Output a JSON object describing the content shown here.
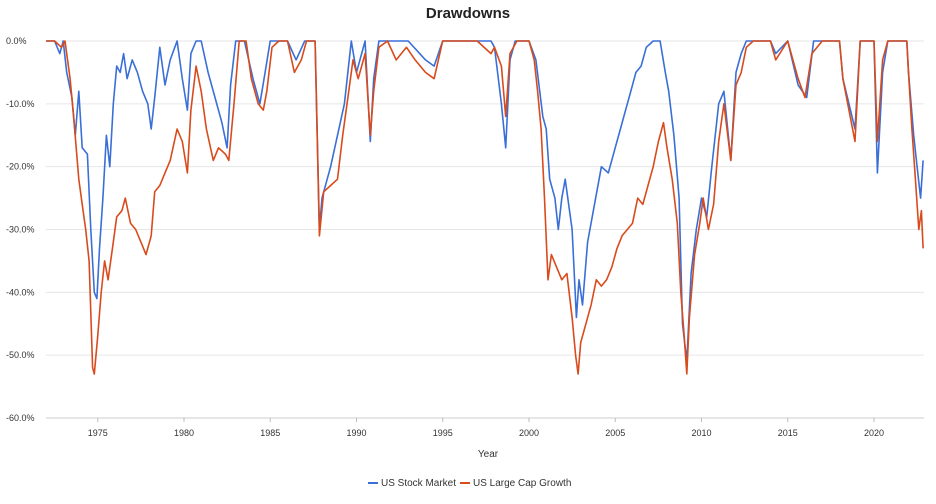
{
  "chart_data": {
    "type": "line",
    "title": "Drawdowns",
    "xlabel": "Year",
    "ylabel": "",
    "xlim": [
      1972.0,
      2022.9
    ],
    "ylim": [
      -60,
      0
    ],
    "x_ticks": [
      1975,
      1980,
      1985,
      1990,
      1995,
      2000,
      2005,
      2010,
      2015,
      2020
    ],
    "y_ticks": [
      0,
      -10,
      -20,
      -30,
      -40,
      -50,
      -60
    ],
    "y_tick_labels": [
      "0.0%",
      "-10.0%",
      "-20.0%",
      "-30.0%",
      "-40.0%",
      "-50.0%",
      "-60.0%"
    ],
    "grid": true,
    "legend_position": "bottom-center",
    "series": [
      {
        "name": "US Stock Market",
        "color": "#3a6fd8",
        "points": [
          [
            1972.0,
            0
          ],
          [
            1972.5,
            0
          ],
          [
            1972.8,
            -2
          ],
          [
            1973.0,
            0
          ],
          [
            1973.2,
            -5
          ],
          [
            1973.5,
            -9
          ],
          [
            1973.7,
            -15
          ],
          [
            1973.9,
            -8
          ],
          [
            1974.1,
            -17
          ],
          [
            1974.4,
            -18
          ],
          [
            1974.6,
            -30
          ],
          [
            1974.8,
            -40
          ],
          [
            1974.95,
            -41
          ],
          [
            1975.1,
            -33
          ],
          [
            1975.3,
            -25
          ],
          [
            1975.5,
            -15
          ],
          [
            1975.7,
            -20
          ],
          [
            1975.9,
            -10
          ],
          [
            1976.1,
            -4
          ],
          [
            1976.3,
            -5
          ],
          [
            1976.5,
            -2
          ],
          [
            1976.7,
            -6
          ],
          [
            1977.0,
            -3
          ],
          [
            1977.3,
            -5
          ],
          [
            1977.6,
            -8
          ],
          [
            1977.9,
            -10
          ],
          [
            1978.1,
            -14
          ],
          [
            1978.3,
            -9
          ],
          [
            1978.6,
            -1
          ],
          [
            1978.9,
            -7
          ],
          [
            1979.2,
            -3
          ],
          [
            1979.6,
            0
          ],
          [
            1979.9,
            -6
          ],
          [
            1980.2,
            -11
          ],
          [
            1980.4,
            -2
          ],
          [
            1980.7,
            0
          ],
          [
            1981.0,
            0
          ],
          [
            1981.4,
            -5
          ],
          [
            1981.8,
            -9
          ],
          [
            1982.2,
            -13
          ],
          [
            1982.5,
            -17
          ],
          [
            1982.7,
            -7
          ],
          [
            1983.0,
            0
          ],
          [
            1983.5,
            0
          ],
          [
            1984.0,
            -6
          ],
          [
            1984.4,
            -10
          ],
          [
            1984.7,
            -5
          ],
          [
            1985.0,
            0
          ],
          [
            1986.0,
            0
          ],
          [
            1986.5,
            -3
          ],
          [
            1987.0,
            0
          ],
          [
            1987.6,
            0
          ],
          [
            1987.85,
            -30
          ],
          [
            1988.0,
            -25
          ],
          [
            1988.5,
            -20
          ],
          [
            1988.9,
            -15
          ],
          [
            1989.3,
            -10
          ],
          [
            1989.7,
            0
          ],
          [
            1990.0,
            -5
          ],
          [
            1990.5,
            0
          ],
          [
            1990.8,
            -16
          ],
          [
            1991.0,
            -6
          ],
          [
            1991.3,
            0
          ],
          [
            1992.0,
            0
          ],
          [
            1993.0,
            0
          ],
          [
            1994.0,
            -3
          ],
          [
            1994.5,
            -4
          ],
          [
            1995.0,
            0
          ],
          [
            1997.0,
            0
          ],
          [
            1997.8,
            0
          ],
          [
            1998.0,
            -1
          ],
          [
            1998.4,
            -10
          ],
          [
            1998.65,
            -17
          ],
          [
            1998.9,
            -3
          ],
          [
            1999.2,
            0
          ],
          [
            2000.0,
            0
          ],
          [
            2000.4,
            -3
          ],
          [
            2000.8,
            -12
          ],
          [
            2001.0,
            -14
          ],
          [
            2001.2,
            -22
          ],
          [
            2001.5,
            -25
          ],
          [
            2001.7,
            -30
          ],
          [
            2001.9,
            -25
          ],
          [
            2002.1,
            -22
          ],
          [
            2002.5,
            -30
          ],
          [
            2002.75,
            -44
          ],
          [
            2002.9,
            -38
          ],
          [
            2003.1,
            -42
          ],
          [
            2003.4,
            -32
          ],
          [
            2003.8,
            -26
          ],
          [
            2004.2,
            -20
          ],
          [
            2004.6,
            -21
          ],
          [
            2005.0,
            -17
          ],
          [
            2005.3,
            -14
          ],
          [
            2005.6,
            -11
          ],
          [
            2005.9,
            -8
          ],
          [
            2006.2,
            -5
          ],
          [
            2006.5,
            -4
          ],
          [
            2006.8,
            -1
          ],
          [
            2007.2,
            0
          ],
          [
            2007.6,
            0
          ],
          [
            2007.9,
            -5
          ],
          [
            2008.1,
            -8
          ],
          [
            2008.4,
            -15
          ],
          [
            2008.7,
            -25
          ],
          [
            2008.9,
            -45
          ],
          [
            2009.15,
            -51
          ],
          [
            2009.4,
            -37
          ],
          [
            2009.7,
            -30
          ],
          [
            2010.0,
            -25
          ],
          [
            2010.3,
            -28
          ],
          [
            2010.6,
            -20
          ],
          [
            2011.0,
            -10
          ],
          [
            2011.3,
            -8
          ],
          [
            2011.7,
            -19
          ],
          [
            2012.0,
            -5
          ],
          [
            2012.3,
            -2
          ],
          [
            2012.6,
            0
          ],
          [
            2013.0,
            0
          ],
          [
            2014.0,
            0
          ],
          [
            2014.3,
            -2
          ],
          [
            2015.0,
            0
          ],
          [
            2015.6,
            -7
          ],
          [
            2016.1,
            -9
          ],
          [
            2016.5,
            0
          ],
          [
            2017.0,
            0
          ],
          [
            2018.0,
            0
          ],
          [
            2018.2,
            -6
          ],
          [
            2018.9,
            -14
          ],
          [
            2019.2,
            0
          ],
          [
            2020.0,
            0
          ],
          [
            2020.2,
            -21
          ],
          [
            2020.5,
            -5
          ],
          [
            2020.8,
            0
          ],
          [
            2021.5,
            0
          ],
          [
            2021.9,
            0
          ],
          [
            2022.0,
            -5
          ],
          [
            2022.3,
            -15
          ],
          [
            2022.5,
            -20
          ],
          [
            2022.7,
            -25
          ],
          [
            2022.85,
            -19
          ]
        ]
      },
      {
        "name": "US Large Cap Growth",
        "color": "#d94b1c",
        "points": [
          [
            1972.0,
            0
          ],
          [
            1972.5,
            0
          ],
          [
            1972.9,
            -1
          ],
          [
            1973.1,
            0
          ],
          [
            1973.4,
            -6
          ],
          [
            1973.6,
            -12
          ],
          [
            1973.9,
            -22
          ],
          [
            1974.1,
            -26
          ],
          [
            1974.3,
            -30
          ],
          [
            1974.5,
            -35
          ],
          [
            1974.7,
            -52
          ],
          [
            1974.8,
            -53
          ],
          [
            1975.0,
            -47
          ],
          [
            1975.2,
            -40
          ],
          [
            1975.4,
            -35
          ],
          [
            1975.6,
            -38
          ],
          [
            1975.9,
            -32
          ],
          [
            1976.1,
            -28
          ],
          [
            1976.4,
            -27
          ],
          [
            1976.6,
            -25
          ],
          [
            1976.9,
            -29
          ],
          [
            1977.2,
            -30
          ],
          [
            1977.5,
            -32
          ],
          [
            1977.8,
            -34
          ],
          [
            1978.1,
            -31
          ],
          [
            1978.3,
            -24
          ],
          [
            1978.6,
            -23
          ],
          [
            1978.9,
            -21
          ],
          [
            1979.2,
            -19
          ],
          [
            1979.6,
            -14
          ],
          [
            1979.9,
            -16
          ],
          [
            1980.2,
            -21
          ],
          [
            1980.4,
            -11
          ],
          [
            1980.7,
            -4
          ],
          [
            1981.0,
            -8
          ],
          [
            1981.3,
            -14
          ],
          [
            1981.7,
            -19
          ],
          [
            1982.0,
            -17
          ],
          [
            1982.4,
            -18
          ],
          [
            1982.6,
            -19
          ],
          [
            1982.9,
            -10
          ],
          [
            1983.2,
            0
          ],
          [
            1983.6,
            0
          ],
          [
            1983.9,
            -6
          ],
          [
            1984.3,
            -10
          ],
          [
            1984.6,
            -11
          ],
          [
            1984.8,
            -8
          ],
          [
            1985.1,
            -1
          ],
          [
            1985.5,
            0
          ],
          [
            1986.0,
            0
          ],
          [
            1986.4,
            -5
          ],
          [
            1986.8,
            -3
          ],
          [
            1987.1,
            0
          ],
          [
            1987.6,
            0
          ],
          [
            1987.85,
            -31
          ],
          [
            1988.1,
            -24
          ],
          [
            1988.5,
            -23
          ],
          [
            1988.9,
            -22
          ],
          [
            1989.2,
            -15
          ],
          [
            1989.5,
            -9
          ],
          [
            1989.8,
            -3
          ],
          [
            1990.1,
            -6
          ],
          [
            1990.5,
            -2
          ],
          [
            1990.8,
            -15
          ],
          [
            1991.0,
            -8
          ],
          [
            1991.3,
            -1
          ],
          [
            1991.8,
            0
          ],
          [
            1992.3,
            -3
          ],
          [
            1992.9,
            -1
          ],
          [
            1993.4,
            -3
          ],
          [
            1994.0,
            -5
          ],
          [
            1994.5,
            -6
          ],
          [
            1995.0,
            0
          ],
          [
            1996.0,
            0
          ],
          [
            1997.0,
            0
          ],
          [
            1997.8,
            -2
          ],
          [
            1998.0,
            -1
          ],
          [
            1998.4,
            -4
          ],
          [
            1998.65,
            -12
          ],
          [
            1998.9,
            -2
          ],
          [
            1999.3,
            0
          ],
          [
            2000.0,
            0
          ],
          [
            2000.3,
            -3
          ],
          [
            2000.5,
            -8
          ],
          [
            2000.7,
            -14
          ],
          [
            2000.9,
            -25
          ],
          [
            2001.1,
            -38
          ],
          [
            2001.3,
            -34
          ],
          [
            2001.6,
            -36
          ],
          [
            2001.9,
            -38
          ],
          [
            2002.2,
            -37
          ],
          [
            2002.5,
            -44
          ],
          [
            2002.7,
            -50
          ],
          [
            2002.85,
            -53
          ],
          [
            2003.0,
            -48
          ],
          [
            2003.3,
            -45
          ],
          [
            2003.6,
            -42
          ],
          [
            2003.9,
            -38
          ],
          [
            2004.2,
            -39
          ],
          [
            2004.5,
            -38
          ],
          [
            2004.8,
            -36
          ],
          [
            2005.1,
            -33
          ],
          [
            2005.4,
            -31
          ],
          [
            2005.7,
            -30
          ],
          [
            2006.0,
            -29
          ],
          [
            2006.3,
            -25
          ],
          [
            2006.6,
            -26
          ],
          [
            2006.9,
            -23
          ],
          [
            2007.2,
            -20
          ],
          [
            2007.5,
            -16
          ],
          [
            2007.8,
            -13
          ],
          [
            2008.0,
            -17
          ],
          [
            2008.3,
            -22
          ],
          [
            2008.6,
            -29
          ],
          [
            2008.8,
            -40
          ],
          [
            2009.0,
            -47
          ],
          [
            2009.15,
            -53
          ],
          [
            2009.3,
            -44
          ],
          [
            2009.6,
            -34
          ],
          [
            2009.9,
            -29
          ],
          [
            2010.1,
            -25
          ],
          [
            2010.4,
            -30
          ],
          [
            2010.7,
            -26
          ],
          [
            2011.0,
            -16
          ],
          [
            2011.3,
            -10
          ],
          [
            2011.7,
            -19
          ],
          [
            2012.0,
            -7
          ],
          [
            2012.3,
            -5
          ],
          [
            2012.6,
            -1
          ],
          [
            2013.0,
            0
          ],
          [
            2014.0,
            0
          ],
          [
            2014.3,
            -3
          ],
          [
            2015.0,
            0
          ],
          [
            2015.6,
            -6
          ],
          [
            2016.0,
            -9
          ],
          [
            2016.4,
            -2
          ],
          [
            2017.0,
            0
          ],
          [
            2018.0,
            0
          ],
          [
            2018.2,
            -6
          ],
          [
            2018.9,
            -16
          ],
          [
            2019.2,
            0
          ],
          [
            2020.0,
            0
          ],
          [
            2020.2,
            -16
          ],
          [
            2020.5,
            -3
          ],
          [
            2020.8,
            0
          ],
          [
            2021.5,
            0
          ],
          [
            2021.9,
            0
          ],
          [
            2022.0,
            -5
          ],
          [
            2022.2,
            -14
          ],
          [
            2022.4,
            -22
          ],
          [
            2022.6,
            -30
          ],
          [
            2022.75,
            -27
          ],
          [
            2022.85,
            -33
          ]
        ]
      }
    ]
  }
}
